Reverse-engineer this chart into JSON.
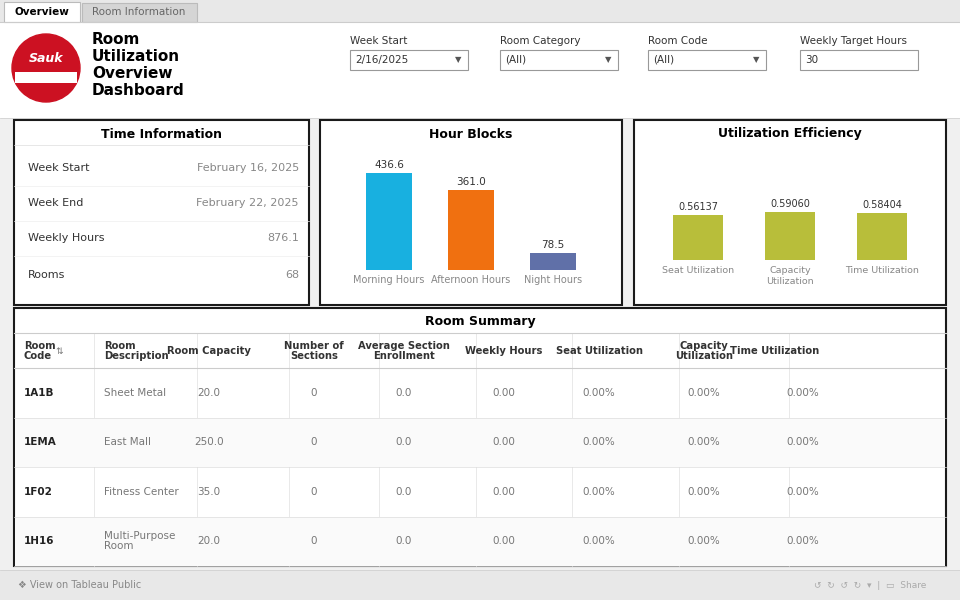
{
  "bg_color": "#f0f0f0",
  "white": "#ffffff",
  "dark_border": "#1a1a1a",
  "light_gray": "#e8e8e8",
  "medium_gray": "#aaaaaa",
  "dark_gray": "#555555",
  "text_dark": "#222222",
  "text_med": "#555555",
  "text_light": "#888888",
  "logo_red": "#cc1122",
  "logo_white": "#ffffff",
  "time_info_title": "Time Information",
  "time_info_rows": [
    [
      "Week Start",
      "February 16, 2025"
    ],
    [
      "Week End",
      "February 22, 2025"
    ],
    [
      "Weekly Hours",
      "876.1"
    ],
    [
      "Rooms",
      "68"
    ]
  ],
  "hour_blocks_title": "Hour Blocks",
  "bar_labels": [
    "Morning Hours",
    "Afternoon Hours",
    "Night Hours"
  ],
  "bar_values": [
    436.6,
    361.0,
    78.5
  ],
  "bar_colors": [
    "#18b0e0",
    "#f07010",
    "#6070a8"
  ],
  "utilization_title": "Utilization Efficiency",
  "util_labels": [
    "Seat Utilization",
    "Capacity\nUtilization",
    "Time Utilization"
  ],
  "util_values": [
    0.56137,
    0.5906,
    0.58404
  ],
  "util_color": "#b8be3a",
  "room_summary_title": "Room Summary",
  "table_headers": [
    "Room\nCode",
    "Room\nDescription",
    "Room Capacity",
    "Number of\nSections",
    "Average Section\nEnrollment",
    "Weekly Hours",
    "Seat Utilization",
    "Capacity\nUtilization",
    "Time Utilization"
  ],
  "table_rows": [
    [
      "1A1B",
      "Sheet Metal",
      "20.0",
      "0",
      "0.0",
      "0.00",
      "0.00%",
      "0.00%",
      "0.00%"
    ],
    [
      "1EMA",
      "East Mall",
      "250.0",
      "0",
      "0.0",
      "0.00",
      "0.00%",
      "0.00%",
      "0.00%"
    ],
    [
      "1F02",
      "Fitness Center",
      "35.0",
      "0",
      "0.0",
      "0.00",
      "0.00%",
      "0.00%",
      "0.00%"
    ],
    [
      "1H16",
      "Multi-Purpose\nRoom",
      "20.0",
      "0",
      "0.0",
      "0.00",
      "0.00%",
      "0.00%",
      "0.00%"
    ]
  ],
  "filter_labels": [
    "Week Start",
    "Room Category",
    "Room Code",
    "Weekly Target Hours"
  ],
  "filter_values": [
    "2/16/2025",
    "(All)",
    "(All)",
    "30"
  ],
  "filter_has_arrow": [
    true,
    true,
    true,
    false
  ],
  "footer_text": "❖ View on Tableau Public"
}
